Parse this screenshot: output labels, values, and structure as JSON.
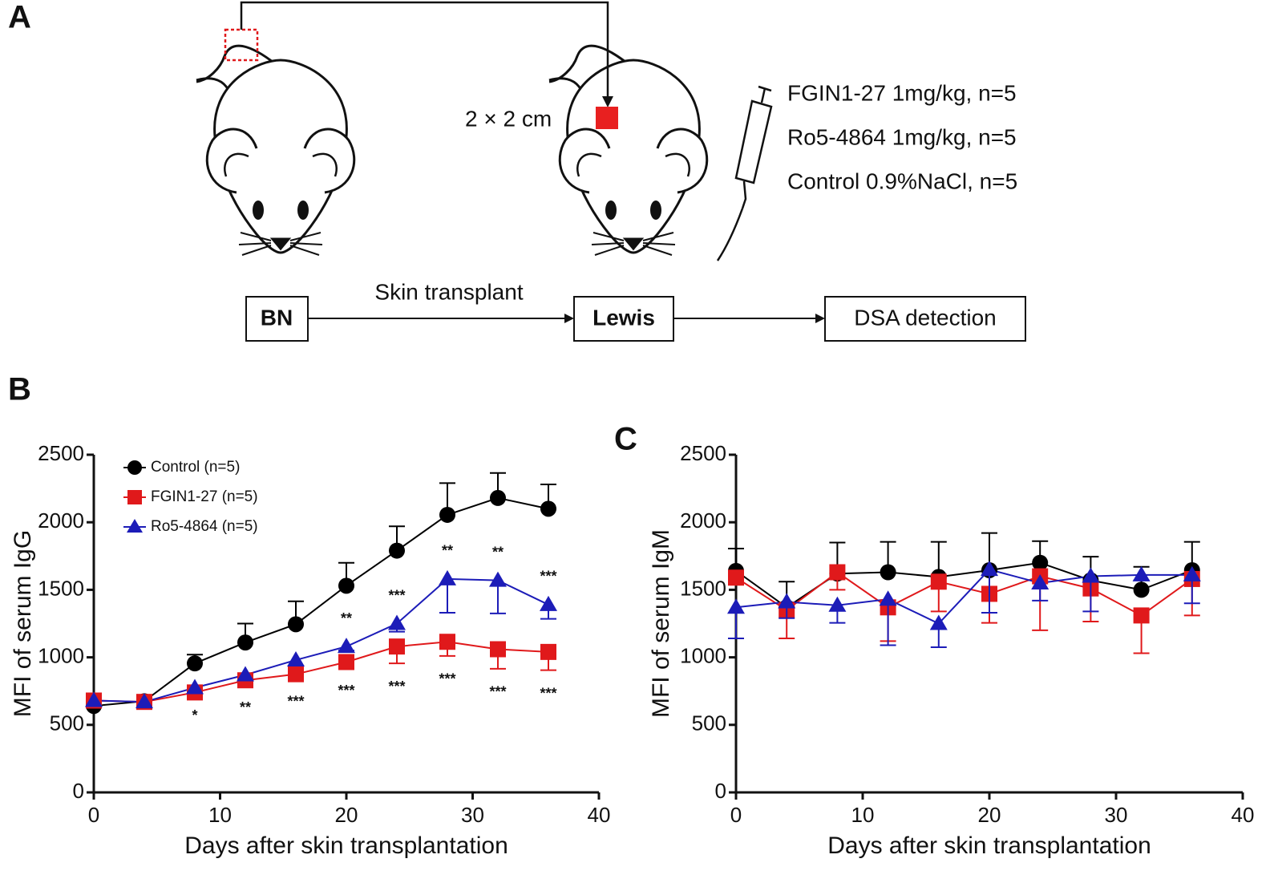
{
  "panel_labels": [
    "A",
    "B",
    "C"
  ],
  "diagram": {
    "donor": "BN",
    "recipient": "Lewis",
    "readout": "DSA detection",
    "arrow_label": "Skin transplant",
    "graft_size": "2 × 2 cm",
    "treatments": [
      "FGIN1-27 1mg/kg, n=5",
      "Ro5-4864 1mg/kg, n=5",
      "Control 0.9%NaCl, n=5"
    ]
  },
  "chart_data": [
    {
      "type": "line",
      "xlabel": "Days after skin transplantation",
      "ylabel": "MFI of serum IgG",
      "x": [
        0,
        4,
        8,
        12,
        16,
        20,
        24,
        28,
        32,
        36
      ],
      "xlim": [
        0,
        40
      ],
      "xticks": [
        0,
        10,
        20,
        30,
        40
      ],
      "ylim": [
        0,
        2500
      ],
      "yticks": [
        0,
        500,
        1000,
        1500,
        2000,
        2500
      ],
      "grid": false,
      "legend": "top-left",
      "series": [
        {
          "name": "Control (n=5)",
          "color": "#000000",
          "marker": "circle",
          "error_side": "up",
          "values": [
            640,
            675,
            955,
            1110,
            1245,
            1530,
            1790,
            2055,
            2180,
            2100
          ],
          "errors": [
            null,
            null,
            65,
            140,
            170,
            170,
            180,
            235,
            185,
            180
          ]
        },
        {
          "name": "FGIN1-27 (n=5)",
          "color": "#e0191b",
          "marker": "square",
          "error_side": "down",
          "significance_side": "below",
          "values": [
            680,
            670,
            740,
            830,
            875,
            965,
            1080,
            1115,
            1060,
            1040
          ],
          "errors": [
            null,
            null,
            null,
            30,
            30,
            40,
            125,
            105,
            145,
            135
          ],
          "significance": [
            null,
            null,
            "*",
            "**",
            "***",
            "***",
            "***",
            "***",
            "***",
            "***"
          ]
        },
        {
          "name": "Ro5-4864 (n=5)",
          "color": "#1c1cb8",
          "marker": "triangle",
          "error_side": "down",
          "significance_side": "above",
          "values": [
            680,
            670,
            775,
            870,
            980,
            1080,
            1250,
            1580,
            1570,
            1390
          ],
          "errors": [
            null,
            null,
            null,
            null,
            null,
            30,
            60,
            250,
            245,
            105
          ],
          "significance": [
            null,
            null,
            null,
            null,
            null,
            "**",
            "***",
            "**",
            "**",
            "***"
          ]
        }
      ]
    },
    {
      "type": "line",
      "xlabel": "Days after skin transplantation",
      "ylabel": "MFI of serum IgM",
      "x": [
        0,
        4,
        8,
        12,
        16,
        20,
        24,
        28,
        32,
        36
      ],
      "xlim": [
        0,
        40
      ],
      "xticks": [
        0,
        10,
        20,
        30,
        40
      ],
      "ylim": [
        0,
        2500
      ],
      "yticks": [
        0,
        500,
        1000,
        1500,
        2000,
        2500
      ],
      "grid": false,
      "series": [
        {
          "color": "#000000",
          "marker": "circle",
          "error_side": "up",
          "values": [
            1640,
            1370,
            1620,
            1630,
            1595,
            1645,
            1700,
            1570,
            1500,
            1645
          ],
          "errors": [
            165,
            190,
            230,
            225,
            260,
            275,
            160,
            175,
            170,
            210
          ]
        },
        {
          "color": "#e0191b",
          "marker": "square",
          "error_side": "down",
          "values": [
            1590,
            1350,
            1630,
            1370,
            1560,
            1470,
            1600,
            1510,
            1310,
            1580
          ],
          "errors": [
            null,
            210,
            130,
            250,
            220,
            215,
            400,
            245,
            280,
            270
          ]
        },
        {
          "color": "#1c1cb8",
          "marker": "triangle",
          "error_side": "down",
          "values": [
            1370,
            1410,
            1385,
            1430,
            1250,
            1650,
            1550,
            1600,
            1610,
            1610
          ],
          "errors": [
            230,
            120,
            130,
            340,
            175,
            320,
            130,
            260,
            40,
            210
          ]
        }
      ]
    }
  ]
}
